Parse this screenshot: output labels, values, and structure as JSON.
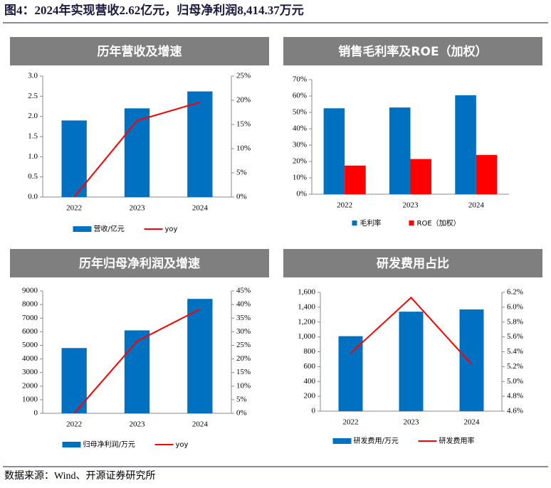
{
  "title": "图4：2024年实现营收2.62亿元，归母净利润8,414.37万元",
  "source": "数据来源：Wind、开源证券研究所",
  "chart_data": [
    {
      "type": "bar",
      "title": "历年营收及增速",
      "categories": [
        "2022",
        "2023",
        "2024"
      ],
      "series": [
        {
          "name": "营收/亿元",
          "color": "#0070c0",
          "values": [
            1.9,
            2.2,
            2.62
          ]
        },
        {
          "name": "yoy",
          "color": "#ff0000",
          "axis": "y2",
          "type": "line",
          "values": [
            0,
            15.8,
            19.6
          ]
        }
      ],
      "ylim": [
        0,
        3
      ],
      "yticks": [
        {
          "value": 0,
          "label": "0.0"
        },
        0.5,
        {
          "value": 1,
          "label": "1.0"
        },
        1.5,
        {
          "value": 2,
          "label": "2.0"
        },
        2.5,
        {
          "value": 3,
          "label": "3.0"
        }
      ],
      "y2lim": [
        0,
        25
      ],
      "y2ticks": [
        {
          "value": 0,
          "label": "0%"
        },
        {
          "value": 5,
          "label": "5%"
        },
        {
          "value": 10,
          "label": "10%"
        },
        {
          "value": 15,
          "label": "15%"
        },
        {
          "value": 20,
          "label": "20%"
        },
        {
          "value": 25,
          "label": "25%"
        }
      ]
    },
    {
      "type": "bar",
      "title": "销售毛利率及ROE（加权）",
      "categories": [
        "2022",
        "2023",
        "2024"
      ],
      "series": [
        {
          "name": "毛利率",
          "color": "#0070c0",
          "values": [
            52.5,
            53,
            60.5
          ]
        },
        {
          "name": "ROE（加权）",
          "color": "#ff0000",
          "values": [
            17.5,
            21.5,
            24
          ]
        }
      ],
      "ylim": [
        0,
        70
      ],
      "yticks": [
        {
          "value": 0,
          "label": "0%"
        },
        {
          "value": 10,
          "label": "10%"
        },
        {
          "value": 20,
          "label": "20%"
        },
        {
          "value": 30,
          "label": "30%"
        },
        {
          "value": 40,
          "label": "40%"
        },
        {
          "value": 50,
          "label": "50%"
        },
        {
          "value": 60,
          "label": "60%"
        },
        {
          "value": 70,
          "label": "70%"
        }
      ]
    },
    {
      "type": "bar",
      "title": "历年归母净利润及增速",
      "categories": [
        "2022",
        "2023",
        "2024"
      ],
      "series": [
        {
          "name": "归母净利润/万元",
          "color": "#0070c0",
          "values": [
            4800,
            6100,
            8414.37
          ]
        },
        {
          "name": "yoy",
          "color": "#ff0000",
          "axis": "y2",
          "type": "line",
          "values": [
            0,
            26.5,
            38.3
          ]
        }
      ],
      "ylim": [
        0,
        9000
      ],
      "yticks": [
        0,
        1000,
        2000,
        3000,
        4000,
        5000,
        6000,
        7000,
        8000,
        9000
      ],
      "y2lim": [
        0,
        45
      ],
      "y2ticks": [
        {
          "value": 0,
          "label": "0%"
        },
        {
          "value": 5,
          "label": "5%"
        },
        {
          "value": 10,
          "label": "10%"
        },
        {
          "value": 15,
          "label": "15%"
        },
        {
          "value": 20,
          "label": "20%"
        },
        {
          "value": 25,
          "label": "25%"
        },
        {
          "value": 30,
          "label": "30%"
        },
        {
          "value": 35,
          "label": "35%"
        },
        {
          "value": 40,
          "label": "40%"
        },
        {
          "value": 45,
          "label": "45%"
        }
      ]
    },
    {
      "type": "bar",
      "title": "研发费用占比",
      "categories": [
        "2022",
        "2023",
        "2024"
      ],
      "series": [
        {
          "name": "研发费用/万元",
          "color": "#0070c0",
          "values": [
            1010,
            1340,
            1370
          ]
        },
        {
          "name": "研发费用率",
          "color": "#ff0000",
          "axis": "y2",
          "type": "line",
          "values": [
            5.38,
            6.13,
            5.23
          ]
        }
      ],
      "ylim": [
        0,
        1600
      ],
      "yticks": [
        0,
        200,
        400,
        600,
        800,
        {
          "value": 1000,
          "label": "1,000"
        },
        {
          "value": 1200,
          "label": "1,200"
        },
        {
          "value": 1400,
          "label": "1,400"
        },
        {
          "value": 1600,
          "label": "1,600"
        }
      ],
      "y2lim": [
        4.6,
        6.2
      ],
      "y2ticks": [
        {
          "value": 4.6,
          "label": "4.6%"
        },
        {
          "value": 4.8,
          "label": "4.8%"
        },
        {
          "value": 5.0,
          "label": "5.0%"
        },
        {
          "value": 5.2,
          "label": "5.2%"
        },
        {
          "value": 5.4,
          "label": "5.4%"
        },
        {
          "value": 5.6,
          "label": "5.6%"
        },
        {
          "value": 5.8,
          "label": "5.8%"
        },
        {
          "value": 6.0,
          "label": "6.0%"
        },
        {
          "value": 6.2,
          "label": "6.2%"
        }
      ]
    }
  ]
}
